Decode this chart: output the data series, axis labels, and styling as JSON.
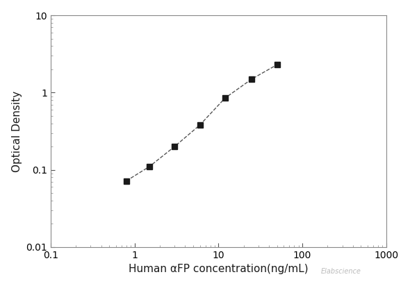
{
  "x": [
    0.8,
    1.5,
    3.0,
    6.0,
    12.0,
    25.0,
    50.0
  ],
  "y": [
    0.072,
    0.11,
    0.2,
    0.38,
    0.85,
    1.5,
    2.3
  ],
  "xlim": [
    0.1,
    1000
  ],
  "ylim": [
    0.01,
    10
  ],
  "xlabel": "Human αFP concentration(ng/mL)",
  "ylabel": "Optical Density",
  "marker": "s",
  "marker_color": "#1a1a1a",
  "marker_size": 6,
  "line_color": "#555555",
  "line_style": "--",
  "line_width": 1.0,
  "background_color": "#ffffff",
  "xlabel_fontsize": 11,
  "ylabel_fontsize": 11,
  "tick_fontsize": 10,
  "watermark": "Elabscience"
}
